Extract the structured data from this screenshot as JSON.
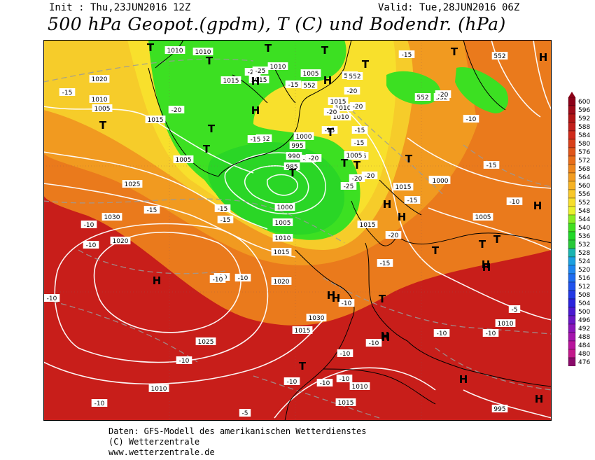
{
  "header": {
    "init": "Init : Thu,23JUN2016 12Z",
    "valid": "Valid: Tue,28JUN2016 06Z",
    "title": "500 hPa Geopot.(gpdm), T (C) und Bodendr. (hPa)"
  },
  "legend": {
    "values": [
      "600",
      "596",
      "592",
      "588",
      "584",
      "580",
      "576",
      "572",
      "568",
      "564",
      "560",
      "556",
      "552",
      "548",
      "544",
      "540",
      "536",
      "532",
      "528",
      "524",
      "520",
      "516",
      "512",
      "508",
      "504",
      "500",
      "496",
      "492",
      "488",
      "484",
      "480",
      "476"
    ],
    "colors": [
      "#8c0018",
      "#9e0a18",
      "#b01414",
      "#c01e1a",
      "#cf2a1a",
      "#d8401a",
      "#e0561a",
      "#e86e1a",
      "#ee861c",
      "#f29c20",
      "#f6b224",
      "#f8c82a",
      "#f6de2c",
      "#e8f02c",
      "#88ec22",
      "#40e020",
      "#20d828",
      "#28c838",
      "#1ab4b0",
      "#1ca0e0",
      "#1e86f0",
      "#1e6cf0",
      "#2052ec",
      "#2238e4",
      "#2a22dc",
      "#4a18d0",
      "#6a16c4",
      "#8a14b8",
      "#a414ac",
      "#b8149c",
      "#c2188a",
      "#8a0a6a"
    ]
  },
  "map": {
    "pressure_labels": [
      "1010",
      "1010",
      "1020",
      "1010",
      "1005",
      "1015",
      "1010",
      "1015",
      "1015",
      "1005",
      "1015",
      "1000",
      "995",
      "990",
      "985",
      "1010",
      "1005",
      "1005",
      "1000",
      "1005",
      "1015",
      "1010",
      "1015",
      "1020",
      "1010",
      "1005",
      "1025",
      "1030",
      "1020",
      "1020",
      "1015",
      "1030",
      "1025",
      "1010",
      "1015",
      "1010",
      "1015",
      "1000",
      "1005",
      "1010",
      "995"
    ],
    "geopot_labels": [
      "552",
      "552",
      "552",
      "552",
      "552",
      "552",
      "552"
    ],
    "temp_labels": [
      "-15",
      "-20",
      "-25",
      "-25",
      "-15",
      "-20",
      "-20",
      "-15",
      "-15",
      "-20",
      "-20",
      "-15",
      "-10",
      "-15",
      "-15",
      "-15",
      "-20",
      "-25",
      "-20",
      "-10",
      "-10",
      "-10",
      "-10",
      "-10",
      "-15",
      "-10",
      "-10",
      "-10",
      "-10",
      "-10",
      "-10",
      "-5",
      "-10",
      "-10",
      "-5",
      "-10",
      "-15",
      "-10",
      "-20",
      "-15",
      "-20",
      "-10",
      "-15",
      "-20",
      "-15",
      "-10"
    ],
    "high_markers": [
      "H",
      "H",
      "H",
      "H",
      "H",
      "H",
      "H",
      "H",
      "H",
      "H",
      "H",
      "H",
      "H",
      "H",
      "H",
      "H"
    ],
    "low_markers": [
      "T",
      "T",
      "T",
      "T",
      "T",
      "T",
      "T",
      "T",
      "T",
      "T",
      "T",
      "T",
      "T",
      "T",
      "T",
      "T",
      "T",
      "T",
      "T"
    ]
  },
  "footer": {
    "line1": "Daten: GFS-Modell des amerikanischen Wetterdienstes",
    "line2": "(C) Wetterzentrale",
    "line3": "www.wetterzentrale.de"
  }
}
